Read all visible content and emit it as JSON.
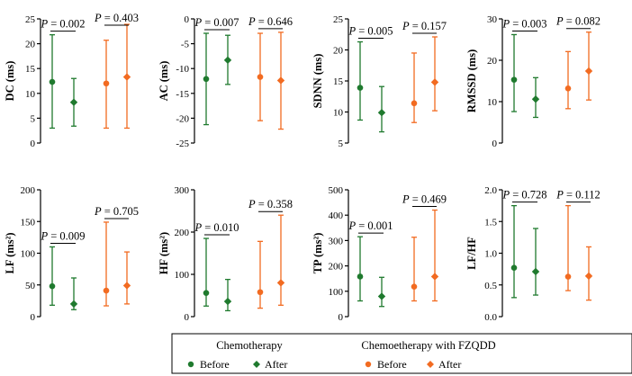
{
  "colors": {
    "chemotherapy": "#1f7a2e",
    "fzqdd": "#f26b21",
    "axis": "#000000"
  },
  "legend": {
    "chemo_title": "Chemotherapy",
    "fzqdd_title": "Chemoetherapy with FZQDD",
    "before_label": "Before",
    "after_label": "After"
  },
  "chart_data": [
    {
      "type": "errorbar",
      "ylabel": "DC (ms)",
      "ylim": [
        0,
        25
      ],
      "ticks": [
        0,
        5,
        10,
        15,
        20,
        25
      ],
      "tick_labels": [
        "0",
        "5",
        "10",
        "15",
        "20",
        "25"
      ],
      "series": [
        {
          "group": "Chemotherapy",
          "time": "Before",
          "median": 12.3,
          "low": 3.0,
          "high": 21.8
        },
        {
          "group": "Chemotherapy",
          "time": "After",
          "median": 8.2,
          "low": 3.4,
          "high": 13.0
        },
        {
          "group": "Chemoetherapy with FZQDD",
          "time": "Before",
          "median": 12.0,
          "low": 3.0,
          "high": 20.7
        },
        {
          "group": "Chemoetherapy with FZQDD",
          "time": "After",
          "median": 13.3,
          "low": 3.0,
          "high": 23.9
        }
      ],
      "p_values": {
        "p_label": "P",
        "chemo": "= 0.002",
        "fzqdd": "= 0.403"
      }
    },
    {
      "type": "errorbar",
      "ylabel": "AC (ms)",
      "ylim": [
        -25,
        0
      ],
      "ticks": [
        -25,
        -20,
        -15,
        -10,
        -5,
        0
      ],
      "tick_labels": [
        "-25",
        "-20",
        "-15",
        "-10",
        "-5",
        "0"
      ],
      "series": [
        {
          "group": "Chemotherapy",
          "time": "Before",
          "median": -12.1,
          "low": -21.3,
          "high": -2.9
        },
        {
          "group": "Chemotherapy",
          "time": "After",
          "median": -8.3,
          "low": -13.2,
          "high": -3.3
        },
        {
          "group": "Chemoetherapy with FZQDD",
          "time": "Before",
          "median": -11.7,
          "low": -20.5,
          "high": -2.9
        },
        {
          "group": "Chemoetherapy with FZQDD",
          "time": "After",
          "median": -12.4,
          "low": -22.2,
          "high": -2.7
        }
      ],
      "p_values": {
        "p_label": "P",
        "chemo": "= 0.007",
        "fzqdd": "= 0.646"
      }
    },
    {
      "type": "errorbar",
      "ylabel": "SDNN (ms)",
      "ylim": [
        5,
        25
      ],
      "ticks": [
        5,
        10,
        15,
        20,
        25
      ],
      "tick_labels": [
        "5",
        "10",
        "15",
        "20",
        "25"
      ],
      "series": [
        {
          "group": "Chemotherapy",
          "time": "Before",
          "median": 13.9,
          "low": 8.7,
          "high": 21.3
        },
        {
          "group": "Chemotherapy",
          "time": "After",
          "median": 9.9,
          "low": 6.8,
          "high": 14.1
        },
        {
          "group": "Chemoetherapy with FZQDD",
          "time": "Before",
          "median": 11.4,
          "low": 8.3,
          "high": 19.5
        },
        {
          "group": "Chemoetherapy with FZQDD",
          "time": "After",
          "median": 14.8,
          "low": 10.2,
          "high": 22.1
        }
      ],
      "p_values": {
        "p_label": "P",
        "chemo": "= 0.005",
        "fzqdd": "= 0.157"
      }
    },
    {
      "type": "errorbar",
      "ylabel": "RMSSD (ms)",
      "ylim": [
        0,
        30
      ],
      "ticks": [
        0,
        10,
        20,
        30
      ],
      "tick_labels": [
        "0",
        "10",
        "20",
        "30"
      ],
      "series": [
        {
          "group": "Chemotherapy",
          "time": "Before",
          "median": 15.3,
          "low": 7.6,
          "high": 26.2
        },
        {
          "group": "Chemotherapy",
          "time": "After",
          "median": 10.6,
          "low": 6.2,
          "high": 15.8
        },
        {
          "group": "Chemoetherapy with FZQDD",
          "time": "Before",
          "median": 13.2,
          "low": 8.3,
          "high": 22.1
        },
        {
          "group": "Chemoetherapy with FZQDD",
          "time": "After",
          "median": 17.4,
          "low": 10.4,
          "high": 26.8
        }
      ],
      "p_values": {
        "p_label": "P",
        "chemo": "= 0.003",
        "fzqdd": "= 0.082"
      }
    },
    {
      "type": "errorbar",
      "ylabel": "LF (ms²)",
      "ylim": [
        0,
        200
      ],
      "ticks": [
        0,
        50,
        100,
        150,
        200
      ],
      "tick_labels": [
        "0",
        "50",
        "100",
        "150",
        "200"
      ],
      "series": [
        {
          "group": "Chemotherapy",
          "time": "Before",
          "median": 48,
          "low": 18,
          "high": 110
        },
        {
          "group": "Chemotherapy",
          "time": "After",
          "median": 20,
          "low": 11,
          "high": 61
        },
        {
          "group": "Chemoetherapy with FZQDD",
          "time": "Before",
          "median": 41,
          "low": 17,
          "high": 149
        },
        {
          "group": "Chemoetherapy with FZQDD",
          "time": "After",
          "median": 49,
          "low": 20,
          "high": 102
        }
      ],
      "p_values": {
        "p_label": "P",
        "chemo": "= 0.009",
        "fzqdd": "= 0.705"
      }
    },
    {
      "type": "errorbar",
      "ylabel": "HF (ms²)",
      "ylim": [
        0,
        300
      ],
      "ticks": [
        0,
        100,
        200,
        300
      ],
      "tick_labels": [
        "0",
        "100",
        "200",
        "300"
      ],
      "series": [
        {
          "group": "Chemotherapy",
          "time": "Before",
          "median": 56,
          "low": 25,
          "high": 185
        },
        {
          "group": "Chemotherapy",
          "time": "After",
          "median": 36,
          "low": 14,
          "high": 88
        },
        {
          "group": "Chemoetherapy with FZQDD",
          "time": "Before",
          "median": 58,
          "low": 20,
          "high": 178
        },
        {
          "group": "Chemoetherapy with FZQDD",
          "time": "After",
          "median": 80,
          "low": 27,
          "high": 240
        }
      ],
      "p_values": {
        "p_label": "P",
        "chemo": "= 0.010",
        "fzqdd": "= 0.358"
      }
    },
    {
      "type": "errorbar",
      "ylabel": "TP (ms²)",
      "ylim": [
        0,
        500
      ],
      "ticks": [
        0,
        100,
        200,
        300,
        400,
        500
      ],
      "tick_labels": [
        "0",
        "100",
        "200",
        "300",
        "400",
        "500"
      ],
      "series": [
        {
          "group": "Chemotherapy",
          "time": "Before",
          "median": 158,
          "low": 62,
          "high": 315
        },
        {
          "group": "Chemotherapy",
          "time": "After",
          "median": 80,
          "low": 40,
          "high": 155
        },
        {
          "group": "Chemoetherapy with FZQDD",
          "time": "Before",
          "median": 118,
          "low": 62,
          "high": 313
        },
        {
          "group": "Chemoetherapy with FZQDD",
          "time": "After",
          "median": 158,
          "low": 62,
          "high": 420
        }
      ],
      "p_values": {
        "p_label": "P",
        "chemo": "= 0.001",
        "fzqdd": "= 0.469"
      }
    },
    {
      "type": "errorbar",
      "ylabel": "LF/HF",
      "ylim": [
        0,
        2
      ],
      "ticks": [
        0,
        0.5,
        1,
        1.5,
        2
      ],
      "tick_labels": [
        "0.0",
        "0.5",
        "1.0",
        "1.5",
        "2.0"
      ],
      "series": [
        {
          "group": "Chemotherapy",
          "time": "Before",
          "median": 0.77,
          "low": 0.3,
          "high": 1.75
        },
        {
          "group": "Chemotherapy",
          "time": "After",
          "median": 0.71,
          "low": 0.34,
          "high": 1.39
        },
        {
          "group": "Chemoetherapy with FZQDD",
          "time": "Before",
          "median": 0.63,
          "low": 0.41,
          "high": 1.75
        },
        {
          "group": "Chemoetherapy with FZQDD",
          "time": "After",
          "median": 0.64,
          "low": 0.26,
          "high": 1.1
        }
      ],
      "p_values": {
        "p_label": "P",
        "chemo": "= 0.728",
        "fzqdd": "= 0.112"
      }
    }
  ]
}
